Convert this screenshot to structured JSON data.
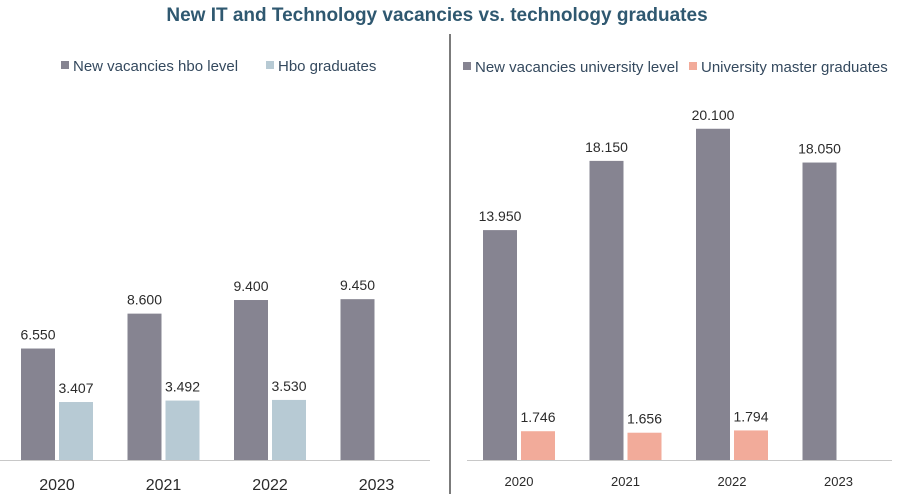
{
  "chart_title": "New IT and Technology vacancies vs. technology graduates",
  "chart_data": [
    {
      "type": "bar",
      "title": "",
      "categories": [
        "2020",
        "2021",
        "2022",
        "2023"
      ],
      "series": [
        {
          "name": "New vacancies hbo level",
          "color": "#868491",
          "values": [
            6550,
            8600,
            9400,
            9450
          ],
          "labels": [
            "6.550",
            "8.600",
            "9.400",
            "9.450"
          ]
        },
        {
          "name": "Hbo graduates",
          "color": "#b7cad4",
          "values": [
            3407,
            3492,
            3530,
            null
          ],
          "labels": [
            "3.407",
            "3.492",
            "3.530",
            null
          ]
        }
      ],
      "xlabel": "",
      "ylabel": "",
      "ylim": [
        0,
        21000
      ],
      "legend": "top",
      "grid": false
    },
    {
      "type": "bar",
      "title": "",
      "categories": [
        "2020",
        "2021",
        "2022",
        "2023"
      ],
      "series": [
        {
          "name": "New vacancies university level",
          "color": "#868491",
          "values": [
            13950,
            18150,
            20100,
            18050
          ],
          "labels": [
            "13.950",
            "18.150",
            "20.100",
            "18.050"
          ]
        },
        {
          "name": "University master graduates",
          "color": "#f2ab9a",
          "values": [
            1746,
            1656,
            1794,
            null
          ],
          "labels": [
            "1.746",
            "1.656",
            "1.794",
            null
          ]
        }
      ],
      "xlabel": "",
      "ylabel": "",
      "ylim": [
        0,
        21000
      ],
      "legend": "top",
      "grid": false
    }
  ]
}
